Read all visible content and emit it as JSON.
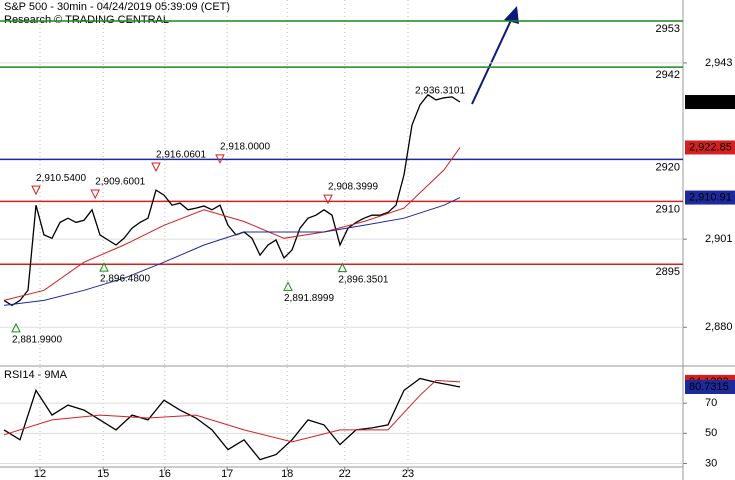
{
  "chart_data": [
    {
      "type": "line",
      "title": "S&P 500 - 30min - 04/24/2019 05:39:09 (CET)",
      "subtitle": "Research © TRADING CENTRAL",
      "xlim": [
        0,
        85
      ],
      "xticks": [
        {
          "value": 4.5,
          "label": "12"
        },
        {
          "value": 12.4,
          "label": "15"
        },
        {
          "value": 20.1,
          "label": "16"
        },
        {
          "value": 27.9,
          "label": "17"
        },
        {
          "value": 35.4,
          "label": "18"
        },
        {
          "value": 42.6,
          "label": "22"
        },
        {
          "value": 50.5,
          "label": "23"
        }
      ],
      "ylim": [
        2871,
        2958
      ],
      "yticks": [
        {
          "value": 2943,
          "label": "2,943"
        },
        {
          "value": 2901,
          "label": "2,901"
        },
        {
          "value": 2880,
          "label": "2,880"
        }
      ],
      "grid": true,
      "series": [
        {
          "color": "#000000",
          "x": [
            0,
            1,
            2,
            3,
            4,
            5,
            6,
            7,
            8,
            9,
            10,
            11,
            12,
            13,
            14,
            15,
            16,
            17,
            18,
            19,
            20,
            21,
            22,
            23,
            24,
            25,
            26,
            27,
            28,
            29,
            30,
            31,
            32,
            33,
            34,
            35,
            36,
            37,
            38,
            39,
            40,
            41,
            42,
            43,
            44,
            45,
            46,
            47,
            48,
            49,
            50,
            51,
            52,
            53,
            54,
            55,
            56,
            57
          ],
          "values": [
            2886.4,
            2885.2,
            2886.4,
            2888.8,
            2909.1,
            2902,
            2901.2,
            2905,
            2906,
            2905,
            2905.5,
            2908,
            2902,
            2900.8,
            2899.6,
            2901.2,
            2903.6,
            2905,
            2906,
            2912.7,
            2911.5,
            2909.1,
            2909.6,
            2908,
            2908.4,
            2908.9,
            2908,
            2909.1,
            2904.3,
            2902,
            2902.7,
            2901.2,
            2897.2,
            2899.6,
            2900.8,
            2896.5,
            2898.4,
            2903.6,
            2906,
            2906.7,
            2908,
            2906.7,
            2899.6,
            2903.6,
            2905,
            2906,
            2906.7,
            2906.7,
            2907.4,
            2909.1,
            2916.3,
            2928.2,
            2933,
            2935.4,
            2934.2,
            2934.7,
            2934.9,
            2933.68
          ]
        },
        {
          "color": "#d42020",
          "x": [
            0,
            5,
            10,
            15,
            20,
            25,
            30,
            35,
            40,
            45,
            50,
            55,
            57
          ],
          "values": [
            2886.4,
            2888.8,
            2895.5,
            2899.6,
            2904.3,
            2908,
            2905.2,
            2901.2,
            2902.7,
            2905.2,
            2908.4,
            2917.5,
            2922.85
          ]
        },
        {
          "color": "#1c2a9c",
          "x": [
            0,
            5,
            10,
            15,
            20,
            25,
            30,
            35,
            40,
            45,
            50,
            55,
            57
          ],
          "values": [
            2885.2,
            2886.4,
            2888.8,
            2891.7,
            2895.5,
            2899.6,
            2902.7,
            2902.7,
            2902.7,
            2904.3,
            2906,
            2909.1,
            2910.91
          ]
        }
      ],
      "levels": [
        {
          "value": 2953,
          "color": "#1a8a1a"
        },
        {
          "value": 2942,
          "color": "#1a8a1a"
        },
        {
          "value": 2920,
          "color": "#1c2a9c"
        },
        {
          "value": 2910,
          "color": "#d42020"
        },
        {
          "value": 2895,
          "color": "#d42020"
        }
      ],
      "highs": [
        {
          "x": 4,
          "value": 2910.54,
          "label": "2,910.5400"
        },
        {
          "x": 11.4,
          "value": 2909.6001,
          "label": "2,909.6001"
        },
        {
          "x": 19,
          "value": 2916.0601,
          "label": "2,916.0601"
        },
        {
          "x": 27,
          "value": 2918,
          "label": "2,918.0000"
        },
        {
          "x": 40.5,
          "value": 2908.3999,
          "label": "2,908.3999"
        }
      ],
      "peak": {
        "x": 54.5,
        "value": 2936.3101,
        "label": "2,936.3101"
      },
      "lows": [
        {
          "x": 1.5,
          "value": 2881.99,
          "label": "2,881.9900"
        },
        {
          "x": 12.5,
          "value": 2896.48,
          "label": "2,896.4800"
        },
        {
          "x": 35.5,
          "value": 2891.8999,
          "label": "2,891.8999"
        },
        {
          "x": 42.3,
          "value": 2896.3501,
          "label": "2,896.3501"
        }
      ],
      "tags": [
        {
          "value": 2933.68,
          "label": "2,933.68",
          "color": "#000000"
        },
        {
          "value": 2922.85,
          "label": "2,922.85",
          "color": "#d42020"
        },
        {
          "value": 2910.91,
          "label": "2,910.91",
          "color": "#1c2a9c"
        }
      ]
    },
    {
      "type": "line",
      "title": "RSI14 - 9MA",
      "xlim": [
        0,
        85
      ],
      "ylim": [
        27,
        94
      ],
      "yticks": [
        70,
        50,
        30
      ],
      "grid": true,
      "series": [
        {
          "color": "#000000",
          "x": [
            0,
            2,
            4,
            6,
            8,
            10,
            12,
            14,
            16,
            18,
            20,
            22,
            24,
            26,
            28,
            30,
            32,
            34,
            36,
            38,
            40,
            42,
            44,
            46,
            48,
            50,
            52,
            54,
            56,
            57
          ],
          "values": [
            52.3,
            45.7,
            78.5,
            62.1,
            68.7,
            65.4,
            58.9,
            52.3,
            62.1,
            58.9,
            72,
            65.4,
            60.2,
            52.3,
            39.2,
            45.7,
            32.6,
            35.9,
            45.7,
            58.9,
            55.6,
            42.5,
            52.3,
            53.6,
            55.6,
            78.5,
            86.4,
            83.8,
            81.8,
            80.7315
          ]
        },
        {
          "color": "#d42020",
          "x": [
            0,
            6,
            12,
            18,
            24,
            30,
            36,
            42,
            48,
            52,
            54,
            57
          ],
          "values": [
            49,
            58.9,
            62.1,
            60.2,
            62.1,
            52.3,
            44.4,
            52.3,
            52.3,
            75.2,
            85.1,
            84.1283
          ]
        }
      ],
      "tags": [
        {
          "value": 84.1283,
          "label": "84.1283",
          "color": "#d42020"
        },
        {
          "value": 80.7315,
          "label": "80.7315",
          "color": "#1c2a9c"
        }
      ]
    }
  ]
}
